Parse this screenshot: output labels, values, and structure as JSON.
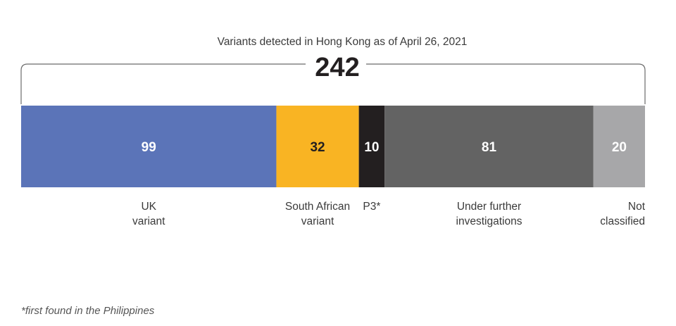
{
  "chart_data": {
    "type": "bar",
    "orientation": "stacked-horizontal",
    "title": "Variants detected in Hong Kong as of April 26, 2021",
    "total": 242,
    "categories": [
      "UK variant",
      "South African variant",
      "P3*",
      "Under further investigations",
      "Not classified"
    ],
    "label_lines": [
      [
        "UK",
        "variant"
      ],
      [
        "South African",
        "variant"
      ],
      [
        "P3*"
      ],
      [
        "Under further",
        "investigations"
      ],
      [
        "Not",
        "classified"
      ]
    ],
    "values": [
      99,
      32,
      10,
      81,
      20
    ],
    "colors": [
      "#5b74b8",
      "#f9b423",
      "#231f20",
      "#636363",
      "#a7a7a9"
    ],
    "value_label_colors": [
      "#ffffff",
      "#231f20",
      "#ffffff",
      "#ffffff",
      "#ffffff"
    ],
    "grid": false
  },
  "footnote": "*first found in the Philippines"
}
